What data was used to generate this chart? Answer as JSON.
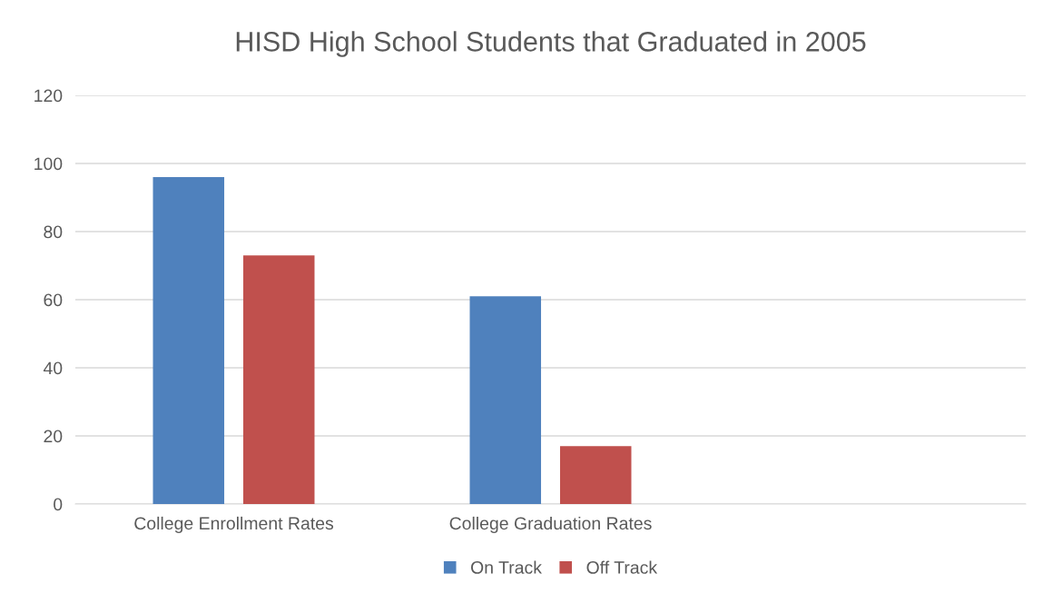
{
  "chart_data": {
    "type": "bar",
    "title": "HISD High School Students that Graduated in 2005",
    "categories": [
      "College Enrollment Rates",
      "College Graduation Rates",
      null
    ],
    "series": [
      {
        "name": "On Track",
        "color": "#4f81bd",
        "values": [
          96,
          61,
          null
        ]
      },
      {
        "name": "Off Track",
        "color": "#c0504d",
        "values": [
          73,
          17,
          null
        ]
      }
    ],
    "ylim": [
      0,
      120
    ],
    "yticks": [
      0,
      20,
      40,
      60,
      80,
      100,
      120
    ],
    "grid": "y",
    "legend": "bottom"
  }
}
